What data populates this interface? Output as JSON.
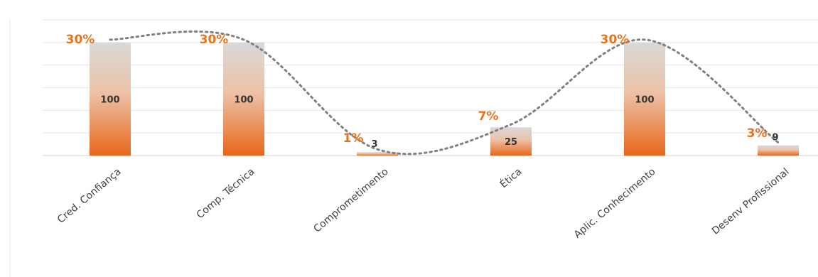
{
  "chart_data": {
    "type": "bar",
    "title": "",
    "xlabel": "",
    "ylabel": "",
    "categories": [
      "Cred. Confiança",
      "Comp. Técnica",
      "Comprometimento",
      "Ética",
      "Aplic. Conhecimento",
      "Desenv Profissional"
    ],
    "values": [
      100,
      100,
      3,
      25,
      100,
      9
    ],
    "value_labels": [
      "100",
      "100",
      "3",
      "25",
      "100",
      "9"
    ],
    "percent_labels": [
      "30%",
      "30%",
      "1%",
      "7%",
      "30%",
      "3%"
    ],
    "ylim": [
      0,
      120
    ],
    "grid": true,
    "trendline": "dotted smooth curve through bar tops",
    "colors": {
      "bar_top": "#d9d9d9",
      "bar_bottom": "#e8661a",
      "percent_label": "#e8731e",
      "trendline": "#808080",
      "grid": "#e6e6e6",
      "value_label": "#333333",
      "category_label": "#404040"
    }
  }
}
